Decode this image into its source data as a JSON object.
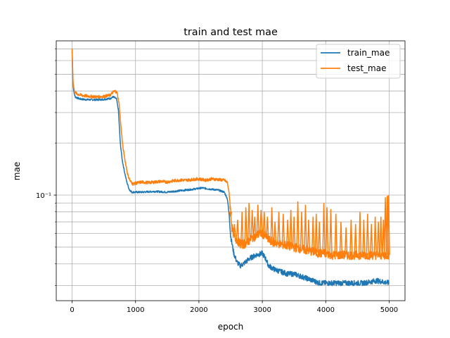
{
  "chart_data": {
    "type": "line",
    "title": "train and test mae",
    "xlabel": "epoch",
    "ylabel": "mae",
    "xlim": [
      -250,
      5250
    ],
    "ylim": [
      0.0245,
      0.78
    ],
    "yscale": "log",
    "grid": true,
    "grid_minor_y": true,
    "legend_position": "top-right",
    "x_ticks": [
      0,
      1000,
      2000,
      3000,
      4000,
      5000
    ],
    "x_tick_labels": [
      "0",
      "1000",
      "2000",
      "3000",
      "4000",
      "5000"
    ],
    "y_major_ticks": [
      0.1
    ],
    "y_major_tick_labels": [
      "10⁻¹"
    ],
    "y_minor_ticks": [
      0.03,
      0.04,
      0.05,
      0.06,
      0.07,
      0.08,
      0.09,
      0.2,
      0.3,
      0.4,
      0.5,
      0.6,
      0.7
    ],
    "series": [
      {
        "name": "train_mae",
        "color": "#1f77b4",
        "x": [
          0,
          15,
          30,
          50,
          80,
          120,
          200,
          300,
          400,
          500,
          600,
          650,
          700,
          730,
          760,
          790,
          820,
          860,
          900,
          940,
          1000,
          1100,
          1300,
          1500,
          1700,
          1900,
          2050,
          2200,
          2300,
          2400,
          2450,
          2480,
          2500,
          2550,
          2600,
          2650,
          2700,
          2800,
          2900,
          3000,
          3050,
          3100,
          3200,
          3300,
          3400,
          3500,
          3600,
          3700,
          3800,
          3900,
          4000,
          4200,
          4400,
          4600,
          4800,
          5000
        ],
        "y": [
          0.68,
          0.43,
          0.39,
          0.37,
          0.365,
          0.36,
          0.357,
          0.356,
          0.356,
          0.358,
          0.362,
          0.37,
          0.36,
          0.31,
          0.2,
          0.16,
          0.14,
          0.12,
          0.108,
          0.104,
          0.104,
          0.104,
          0.105,
          0.104,
          0.106,
          0.108,
          0.11,
          0.108,
          0.107,
          0.104,
          0.095,
          0.075,
          0.058,
          0.046,
          0.041,
          0.039,
          0.04,
          0.043,
          0.045,
          0.046,
          0.043,
          0.039,
          0.037,
          0.036,
          0.035,
          0.035,
          0.034,
          0.033,
          0.032,
          0.031,
          0.031,
          0.031,
          0.031,
          0.031,
          0.032,
          0.031
        ]
      },
      {
        "name": "test_mae",
        "color": "#ff7f0e",
        "x": [
          0,
          15,
          30,
          50,
          80,
          120,
          200,
          300,
          400,
          500,
          600,
          650,
          680,
          710,
          740,
          770,
          800,
          840,
          880,
          920,
          960,
          1000,
          1100,
          1200,
          1300,
          1400,
          1500,
          1600,
          1700,
          1800,
          1900,
          2000,
          2100,
          2200,
          2300,
          2400,
          2450,
          2480,
          2500,
          2520,
          2550,
          2580,
          2620,
          2660,
          2700,
          2750,
          2800,
          2850,
          2900,
          2950,
          3000,
          3050,
          3100,
          3200,
          3300,
          3400,
          3500,
          3600,
          3700,
          3800,
          3900,
          4000,
          4100,
          4200,
          4300,
          4400,
          4500,
          4600,
          4700,
          4800,
          4900,
          5000
        ],
        "y": [
          0.7,
          0.45,
          0.41,
          0.39,
          0.385,
          0.38,
          0.375,
          0.372,
          0.37,
          0.372,
          0.378,
          0.395,
          0.4,
          0.39,
          0.34,
          0.25,
          0.19,
          0.155,
          0.13,
          0.12,
          0.116,
          0.117,
          0.119,
          0.118,
          0.119,
          0.12,
          0.119,
          0.121,
          0.122,
          0.122,
          0.123,
          0.124,
          0.122,
          0.124,
          0.123,
          0.122,
          0.118,
          0.1,
          0.08,
          0.065,
          0.058,
          0.056,
          0.054,
          0.052,
          0.052,
          0.053,
          0.055,
          0.057,
          0.058,
          0.06,
          0.06,
          0.058,
          0.055,
          0.053,
          0.052,
          0.051,
          0.05,
          0.049,
          0.048,
          0.047,
          0.046,
          0.046,
          0.045,
          0.045,
          0.045,
          0.045,
          0.045,
          0.045,
          0.045,
          0.045,
          0.045,
          0.045
        ]
      }
    ],
    "test_spikes": [
      {
        "x": 2500,
        "y": 0.075
      },
      {
        "x": 2560,
        "y": 0.068
      },
      {
        "x": 2610,
        "y": 0.072
      },
      {
        "x": 2680,
        "y": 0.08
      },
      {
        "x": 2740,
        "y": 0.085
      },
      {
        "x": 2790,
        "y": 0.09
      },
      {
        "x": 2840,
        "y": 0.082
      },
      {
        "x": 2880,
        "y": 0.075
      },
      {
        "x": 2930,
        "y": 0.088
      },
      {
        "x": 2980,
        "y": 0.082
      },
      {
        "x": 3030,
        "y": 0.08
      },
      {
        "x": 3080,
        "y": 0.075
      },
      {
        "x": 3150,
        "y": 0.085
      },
      {
        "x": 3200,
        "y": 0.07
      },
      {
        "x": 3260,
        "y": 0.08
      },
      {
        "x": 3330,
        "y": 0.078
      },
      {
        "x": 3400,
        "y": 0.072
      },
      {
        "x": 3450,
        "y": 0.082
      },
      {
        "x": 3500,
        "y": 0.075
      },
      {
        "x": 3560,
        "y": 0.092
      },
      {
        "x": 3620,
        "y": 0.08
      },
      {
        "x": 3680,
        "y": 0.088
      },
      {
        "x": 3730,
        "y": 0.072
      },
      {
        "x": 3800,
        "y": 0.075
      },
      {
        "x": 3850,
        "y": 0.078
      },
      {
        "x": 3900,
        "y": 0.07
      },
      {
        "x": 3970,
        "y": 0.09
      },
      {
        "x": 4020,
        "y": 0.085
      },
      {
        "x": 4080,
        "y": 0.083
      },
      {
        "x": 4160,
        "y": 0.078
      },
      {
        "x": 4240,
        "y": 0.07
      },
      {
        "x": 4320,
        "y": 0.065
      },
      {
        "x": 4400,
        "y": 0.072
      },
      {
        "x": 4470,
        "y": 0.068
      },
      {
        "x": 4540,
        "y": 0.08
      },
      {
        "x": 4600,
        "y": 0.072
      },
      {
        "x": 4660,
        "y": 0.078
      },
      {
        "x": 4720,
        "y": 0.068
      },
      {
        "x": 4780,
        "y": 0.075
      },
      {
        "x": 4830,
        "y": 0.07
      },
      {
        "x": 4870,
        "y": 0.075
      },
      {
        "x": 4910,
        "y": 0.072
      },
      {
        "x": 4940,
        "y": 0.097
      },
      {
        "x": 4970,
        "y": 0.099
      },
      {
        "x": 4990,
        "y": 0.1
      }
    ]
  }
}
